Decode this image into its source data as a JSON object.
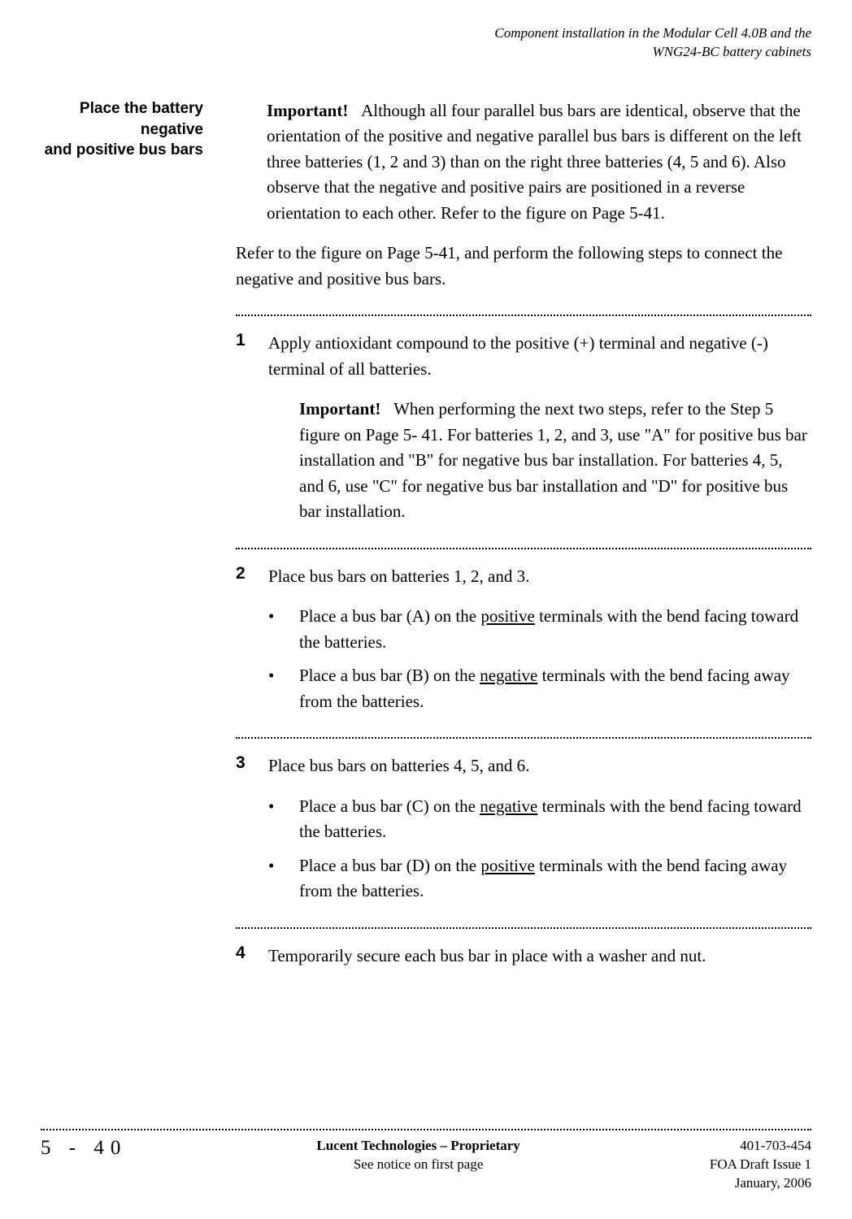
{
  "header": {
    "line1": "Component installation in the Modular Cell 4.0B and the",
    "line2": "WNG24-BC battery cabinets"
  },
  "sideHeading": {
    "line1": "Place the battery negative",
    "line2": "and positive bus bars"
  },
  "intro": {
    "importantLabel": "Important!",
    "importantText": "Although all four parallel bus bars are identical, observe that the orientation of the positive and negative parallel bus bars is different on the left three batteries (1, 2 and 3) than on the right three batteries (4, 5 and 6). Also observe that the negative and positive pairs are positioned in a reverse orientation to each other. Refer to the figure on Page 5-41.",
    "para2": "Refer to the figure on Page 5-41, and perform the following steps to connect the negative and positive bus bars."
  },
  "steps": {
    "s1": {
      "num": "1",
      "text": "Apply antioxidant compound to the positive (+) terminal and negative (-) terminal of all batteries.",
      "importantLabel": "Important!",
      "importantText": "When performing the next two steps, refer to the Step 5 figure on Page 5- 41. For batteries 1, 2, and 3, use \"A\" for positive bus bar installation and \"B\" for negative bus bar installation. For batteries 4, 5, and 6, use \"C\" for negative bus bar installation and \"D\" for positive bus bar installation."
    },
    "s2": {
      "num": "2",
      "text": "Place bus bars on batteries 1, 2, and 3.",
      "b1a": "Place a bus bar (A) on the ",
      "b1u": "positive",
      "b1b": " terminals with the bend facing toward the batteries.",
      "b2a": "Place a bus bar (B) on the ",
      "b2u": "negative",
      "b2b": " terminals with the bend facing away from the batteries."
    },
    "s3": {
      "num": "3",
      "text": "Place bus bars on batteries 4, 5, and 6.",
      "b1a": "Place a bus bar (C) on the ",
      "b1u": "negative",
      "b1b": " terminals with the bend facing toward the batteries.",
      "b2a": "Place a bus bar (D) on the ",
      "b2u": "positive",
      "b2b": " terminals with the bend facing away from the batteries."
    },
    "s4": {
      "num": "4",
      "text": "Temporarily secure each bus bar in place with a washer and nut."
    }
  },
  "footer": {
    "pageNum": "5 - 40",
    "centerBold": "Lucent Technologies – Proprietary",
    "centerPlain": "See notice on first page",
    "right1": "401-703-454",
    "right2": "FOA Draft Issue 1",
    "right3": "January, 2006"
  }
}
